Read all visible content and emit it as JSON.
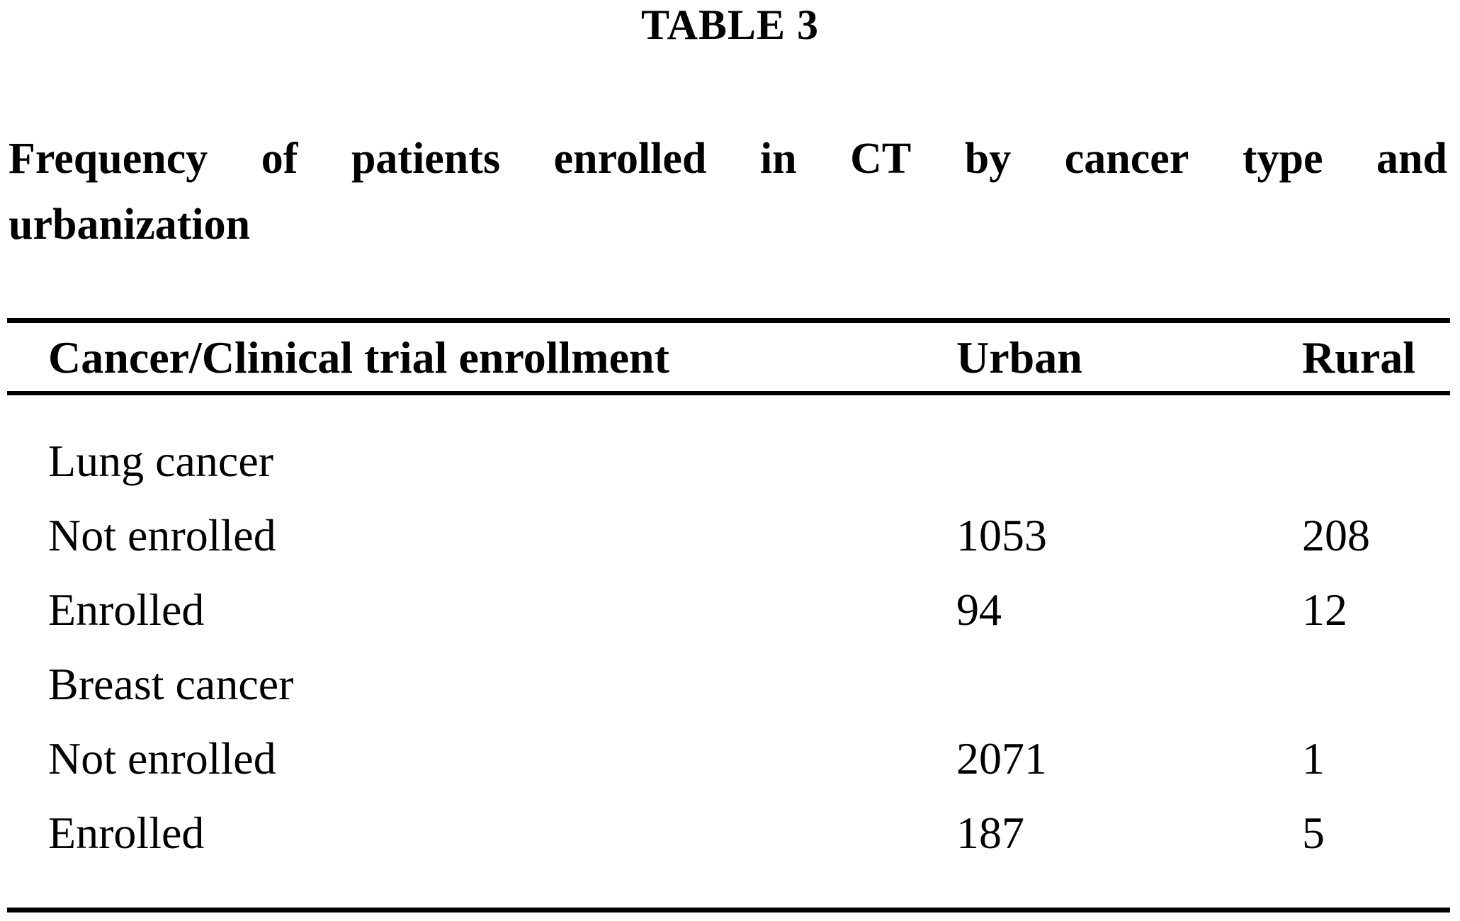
{
  "page": {
    "background": "#ffffff",
    "text_color": "#000000",
    "rule_color": "#000000"
  },
  "table_heading": "TABLE 3",
  "caption": {
    "line1": "Frequency of patients enrolled in CT by cancer type and",
    "line2": "urbanization"
  },
  "table": {
    "columns": [
      {
        "label": "Cancer/Clinical trial enrollment"
      },
      {
        "label": "Urban"
      },
      {
        "label": "Rural"
      }
    ],
    "rows": [
      {
        "label": "Lung cancer",
        "urban": "",
        "rural": ""
      },
      {
        "label": "Not enrolled",
        "urban": "1053",
        "rural": "208"
      },
      {
        "label": "Enrolled",
        "urban": "94",
        "rural": "12"
      },
      {
        "label": "Breast cancer",
        "urban": "",
        "rural": ""
      },
      {
        "label": "Not enrolled",
        "urban": "2071",
        "rural": "1"
      },
      {
        "label": "Enrolled",
        "urban": "187",
        "rural": "5"
      }
    ]
  }
}
